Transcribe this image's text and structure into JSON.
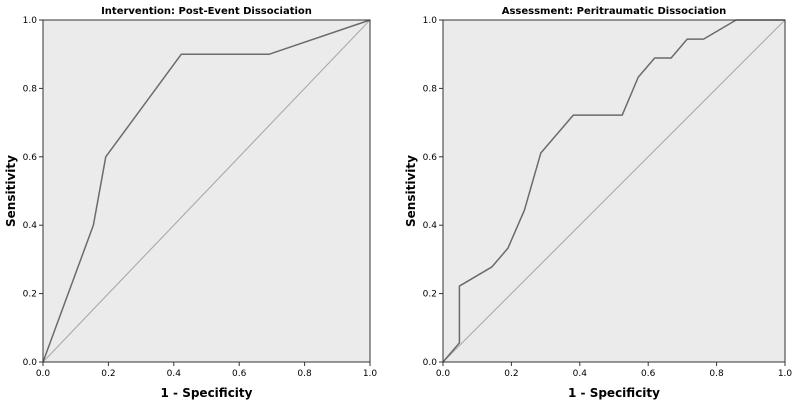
{
  "colors": {
    "plot_background": "#ebebeb",
    "roc_line": "#6b6b6b",
    "reference_line": "#aaaaaa",
    "axis": "#333333"
  },
  "chart_data": [
    {
      "type": "line",
      "title": "Intervention: Post-Event Dissociation",
      "xlabel": "1 - Specificity",
      "ylabel": "Sensitivity",
      "xlim": [
        0,
        1
      ],
      "ylim": [
        0,
        1
      ],
      "xticks": [
        "0.0",
        "0.2",
        "0.4",
        "0.6",
        "0.8",
        "1.0"
      ],
      "yticks": [
        "0.0",
        "0.2",
        "0.4",
        "0.6",
        "0.8",
        "1.0"
      ],
      "grid": false,
      "series": [
        {
          "role": "roc",
          "x": [
            0.0,
            0.154,
            0.192,
            0.423,
            0.692,
            1.0
          ],
          "y": [
            0.0,
            0.4,
            0.6,
            0.9,
            0.9,
            1.0
          ]
        },
        {
          "role": "reference",
          "x": [
            0,
            1
          ],
          "y": [
            0,
            1
          ]
        }
      ]
    },
    {
      "type": "line",
      "title": "Assessment: Peritraumatic Dissociation",
      "xlabel": "1 - Specificity",
      "ylabel": "Sensitivity",
      "xlim": [
        0,
        1
      ],
      "ylim": [
        0,
        1
      ],
      "xticks": [
        "0.0",
        "0.2",
        "0.4",
        "0.6",
        "0.8",
        "1.0"
      ],
      "yticks": [
        "0.0",
        "0.2",
        "0.4",
        "0.6",
        "0.8",
        "1.0"
      ],
      "grid": false,
      "series": [
        {
          "role": "roc",
          "x": [
            0.0,
            0.048,
            0.048,
            0.143,
            0.19,
            0.238,
            0.286,
            0.381,
            0.524,
            0.571,
            0.619,
            0.667,
            0.714,
            0.762,
            0.857,
            1.0
          ],
          "y": [
            0.0,
            0.056,
            0.222,
            0.278,
            0.333,
            0.444,
            0.611,
            0.722,
            0.722,
            0.833,
            0.889,
            0.889,
            0.944,
            0.944,
            1.0,
            1.0
          ]
        },
        {
          "role": "reference",
          "x": [
            0,
            1
          ],
          "y": [
            0,
            1
          ]
        }
      ]
    }
  ]
}
